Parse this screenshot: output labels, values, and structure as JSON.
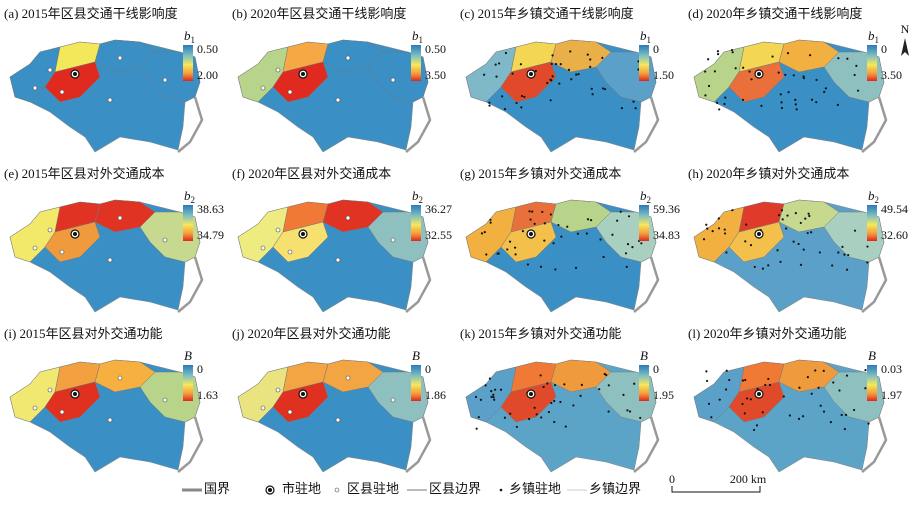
{
  "panels": [
    {
      "label": "(a) 2015年区县交通干线影响度",
      "symbol": "b",
      "subscript": "1",
      "top": "0.50",
      "bottom": "2.00"
    },
    {
      "label": "(b) 2020年区县交通干线影响度",
      "symbol": "b",
      "subscript": "1",
      "top": "0.50",
      "bottom": "3.50"
    },
    {
      "label": "(c) 2015年乡镇交通干线影响度",
      "symbol": "b",
      "subscript": "1",
      "top": "0",
      "bottom": "1.50"
    },
    {
      "label": "(d) 2020年乡镇交通干线影响度",
      "symbol": "b",
      "subscript": "1",
      "top": "0",
      "bottom": "3.50"
    },
    {
      "label": "(e) 2015年区县对外交通成本",
      "symbol": "b",
      "subscript": "2",
      "top": "38.63",
      "bottom": "34.79"
    },
    {
      "label": "(f) 2020年区县对外交通成本",
      "symbol": "b",
      "subscript": "2",
      "top": "36.27",
      "bottom": "32.55"
    },
    {
      "label": "(g) 2015年乡镇对外交通成本",
      "symbol": "b",
      "subscript": "2",
      "top": "59.36",
      "bottom": "34.83"
    },
    {
      "label": "(h) 2020年乡镇对外交通成本",
      "symbol": "b",
      "subscript": "2",
      "top": "49.54",
      "bottom": "32.60"
    },
    {
      "label": "(i) 2015年区县对外交通功能",
      "symbol": "B",
      "top": "0",
      "bottom": "1.63"
    },
    {
      "label": "(j) 2020年区县对外交通功能",
      "symbol": "B",
      "top": "0",
      "bottom": "1.86"
    },
    {
      "label": "(k) 2015年乡镇对外交通功能",
      "symbol": "B",
      "top": "0",
      "bottom": "1.95"
    },
    {
      "label": "(l) 2020年乡镇对外交通功能",
      "symbol": "B",
      "top": "0.03",
      "bottom": "1.97"
    }
  ],
  "north": "N",
  "legend": [
    "国界",
    "市驻地",
    "区县驻地",
    "区县边界",
    "乡镇驻地",
    "乡镇边界"
  ],
  "scale": {
    "start": "0",
    "end": "200 km"
  }
}
